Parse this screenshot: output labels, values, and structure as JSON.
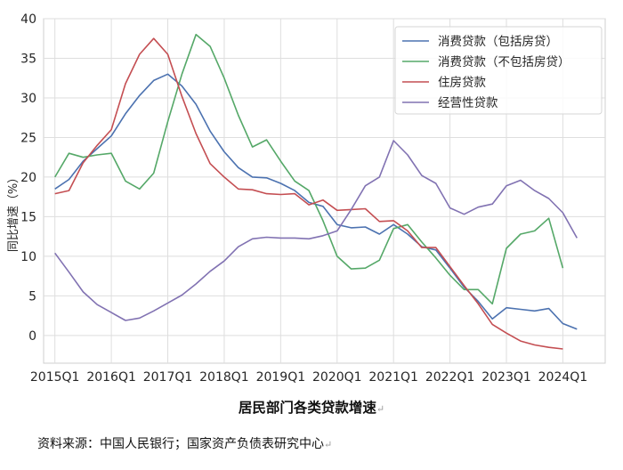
{
  "chart_data": {
    "type": "line",
    "xlabel": "",
    "ylabel": "同比增速（%）",
    "ylim": [
      -3.5,
      40
    ],
    "yticks": [
      0,
      5,
      10,
      15,
      20,
      25,
      30,
      35,
      40
    ],
    "xtick_labels": [
      "2015Q1",
      "2016Q1",
      "2017Q1",
      "2018Q1",
      "2019Q1",
      "2020Q1",
      "2021Q1",
      "2022Q1",
      "2023Q1",
      "2024Q1"
    ],
    "x_start": 2015.0,
    "x_step": 0.25,
    "grid": true,
    "legend_position": "top-right",
    "series": [
      {
        "name": "消费贷款（包括房贷）",
        "color": "#4c72b0",
        "values": [
          18.5,
          19.7,
          22.0,
          23.6,
          25.2,
          28.0,
          30.3,
          32.2,
          33.0,
          31.5,
          29.2,
          25.8,
          23.2,
          21.2,
          20.0,
          19.9,
          19.2,
          18.3,
          16.8,
          16.3,
          14.0,
          13.6,
          13.7,
          12.8,
          14.0,
          12.8,
          11.2,
          10.8,
          8.5,
          6.1,
          4.3,
          2.1,
          3.5,
          3.3,
          3.1,
          3.4,
          1.5,
          0.8
        ]
      },
      {
        "name": "消费贷款（不包括房贷）",
        "color": "#55a868",
        "values": [
          20.0,
          23.0,
          22.5,
          22.8,
          23.0,
          19.5,
          18.5,
          20.5,
          27.0,
          33.0,
          38.0,
          36.5,
          32.5,
          27.8,
          23.8,
          24.7,
          22.0,
          19.5,
          18.3,
          14.5,
          10.0,
          8.4,
          8.5,
          9.5,
          13.5,
          14.0,
          11.8,
          9.8,
          7.6,
          5.8,
          5.8,
          4.0,
          11.0,
          12.8,
          13.2,
          14.8,
          8.5
        ]
      },
      {
        "name": "住房贷款",
        "color": "#c44e52",
        "values": [
          17.9,
          18.3,
          21.8,
          24.0,
          26.0,
          31.8,
          35.5,
          37.5,
          35.5,
          30.2,
          25.5,
          21.7,
          20.0,
          18.5,
          18.4,
          17.9,
          17.8,
          17.9,
          16.5,
          17.1,
          15.8,
          15.9,
          16.0,
          14.4,
          14.5,
          13.2,
          11.1,
          11.1,
          8.7,
          6.3,
          4.0,
          1.4,
          0.3,
          -0.7,
          -1.2,
          -1.5,
          -1.7
        ]
      },
      {
        "name": "经营性贷款",
        "color": "#8172b2",
        "values": [
          10.4,
          8.0,
          5.5,
          3.9,
          2.9,
          1.9,
          2.2,
          3.1,
          4.1,
          5.1,
          6.5,
          8.1,
          9.4,
          11.2,
          12.2,
          12.4,
          12.3,
          12.3,
          12.2,
          12.6,
          13.2,
          15.9,
          18.9,
          20.0,
          24.6,
          22.8,
          20.2,
          19.2,
          16.1,
          15.3,
          16.2,
          16.6,
          18.9,
          19.6,
          18.3,
          17.3,
          15.5,
          12.3
        ]
      }
    ]
  },
  "caption": "居民部门各类贷款增速",
  "source": "资料来源：中国人民银行；国家资产负债表研究中心",
  "para_mark": "↵"
}
